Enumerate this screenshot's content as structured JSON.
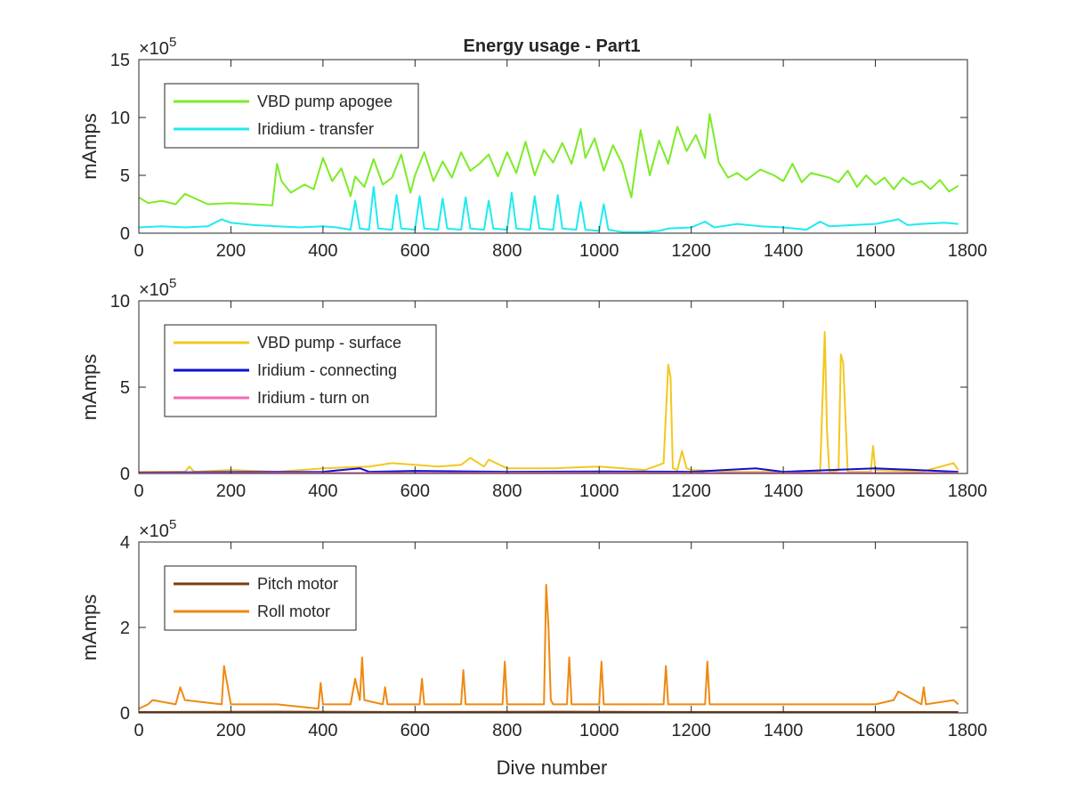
{
  "chart_data": {
    "type": "line",
    "title": "Energy usage - Part1",
    "xlabel": "Dive number",
    "xlim": [
      0,
      1800
    ],
    "xticks": [
      0,
      200,
      400,
      600,
      800,
      1000,
      1200,
      1400,
      1600,
      1800
    ],
    "panels": [
      {
        "ylabel": "mAmps",
        "ylim": [
          0,
          15
        ],
        "yticks": [
          0,
          5,
          10,
          15
        ],
        "exponent_base": "10",
        "exponent": "5",
        "legend_placement": "top-left",
        "series": [
          {
            "name": "VBD pump apogee",
            "color": "#7CEB27",
            "x": [
              0,
              20,
              50,
              80,
              100,
              150,
              200,
              250,
              290,
              300,
              310,
              330,
              360,
              380,
              400,
              420,
              440,
              460,
              470,
              490,
              510,
              530,
              550,
              570,
              590,
              600,
              620,
              640,
              660,
              680,
              700,
              720,
              740,
              760,
              780,
              800,
              820,
              840,
              860,
              880,
              900,
              920,
              940,
              960,
              970,
              990,
              1010,
              1030,
              1050,
              1070,
              1090,
              1110,
              1130,
              1150,
              1170,
              1190,
              1210,
              1230,
              1240,
              1260,
              1280,
              1300,
              1320,
              1350,
              1380,
              1400,
              1420,
              1440,
              1460,
              1480,
              1500,
              1520,
              1540,
              1560,
              1580,
              1600,
              1620,
              1640,
              1660,
              1680,
              1700,
              1720,
              1740,
              1760,
              1780
            ],
            "y": [
              3.1,
              2.6,
              2.8,
              2.5,
              3.4,
              2.5,
              2.6,
              2.5,
              2.4,
              6.0,
              4.5,
              3.5,
              4.2,
              3.8,
              6.5,
              4.5,
              5.6,
              3.2,
              4.9,
              4.0,
              6.4,
              4.2,
              4.8,
              6.8,
              3.5,
              5.0,
              7.0,
              4.5,
              6.2,
              4.8,
              7.0,
              5.4,
              6.0,
              6.8,
              4.9,
              7.0,
              5.2,
              7.9,
              5.0,
              7.2,
              6.1,
              7.8,
              6.0,
              9.0,
              6.5,
              8.2,
              5.4,
              7.6,
              6.0,
              3.1,
              8.9,
              5.0,
              8.0,
              6.0,
              9.2,
              7.1,
              8.5,
              6.5,
              10.3,
              6.1,
              4.8,
              5.2,
              4.6,
              5.5,
              5.0,
              4.5,
              6.0,
              4.4,
              5.2,
              5.0,
              4.8,
              4.4,
              5.4,
              4.0,
              5.0,
              4.2,
              4.8,
              3.8,
              4.8,
              4.2,
              4.5,
              3.8,
              4.6,
              3.6,
              4.1
            ]
          },
          {
            "name": "Iridium - transfer",
            "color": "#1FEAF0",
            "x": [
              0,
              50,
              100,
              150,
              180,
              200,
              250,
              300,
              350,
              400,
              430,
              460,
              470,
              480,
              500,
              510,
              520,
              550,
              560,
              570,
              600,
              610,
              620,
              650,
              660,
              670,
              700,
              710,
              720,
              750,
              760,
              770,
              800,
              810,
              820,
              850,
              860,
              870,
              900,
              910,
              920,
              950,
              960,
              970,
              1000,
              1010,
              1020,
              1050,
              1100,
              1130,
              1150,
              1200,
              1230,
              1250,
              1300,
              1350,
              1400,
              1450,
              1480,
              1500,
              1550,
              1600,
              1650,
              1670,
              1700,
              1750,
              1780
            ],
            "y": [
              0.5,
              0.6,
              0.5,
              0.6,
              1.2,
              0.9,
              0.7,
              0.6,
              0.5,
              0.6,
              0.5,
              0.3,
              2.8,
              0.4,
              0.3,
              4.0,
              0.4,
              0.3,
              3.3,
              0.4,
              0.3,
              3.2,
              0.4,
              0.3,
              3.0,
              0.4,
              0.3,
              3.1,
              0.4,
              0.3,
              2.8,
              0.4,
              0.3,
              3.5,
              0.4,
              0.3,
              3.2,
              0.4,
              0.3,
              3.3,
              0.4,
              0.3,
              2.7,
              0.3,
              0.2,
              2.5,
              0.3,
              0.1,
              0.1,
              0.2,
              0.4,
              0.5,
              1.0,
              0.5,
              0.8,
              0.6,
              0.5,
              0.3,
              1.0,
              0.6,
              0.7,
              0.8,
              1.2,
              0.7,
              0.8,
              0.9,
              0.8
            ]
          }
        ]
      },
      {
        "ylabel": "mAmps",
        "ylim": [
          0,
          10
        ],
        "yticks": [
          0,
          5,
          10
        ],
        "exponent_base": "10",
        "exponent": "5",
        "legend_placement": "top-left",
        "series": [
          {
            "name": "VBD pump - surface",
            "color": "#F2C81E",
            "x": [
              0,
              100,
              110,
              120,
              200,
              300,
              400,
              500,
              550,
              600,
              650,
              700,
              720,
              750,
              760,
              800,
              900,
              1000,
              1100,
              1140,
              1150,
              1155,
              1160,
              1170,
              1180,
              1190,
              1200,
              1300,
              1400,
              1480,
              1490,
              1495,
              1500,
              1510,
              1520,
              1525,
              1530,
              1540,
              1590,
              1595,
              1600,
              1700,
              1770,
              1780
            ],
            "y": [
              0.1,
              0.1,
              0.4,
              0.1,
              0.2,
              0.1,
              0.3,
              0.4,
              0.6,
              0.5,
              0.4,
              0.5,
              0.9,
              0.4,
              0.8,
              0.3,
              0.3,
              0.4,
              0.2,
              0.6,
              6.3,
              5.6,
              0.3,
              0.2,
              1.3,
              0.3,
              0.2,
              0.1,
              0.1,
              0.1,
              8.2,
              2.5,
              0.1,
              0.1,
              0.2,
              6.9,
              6.4,
              0.1,
              0.1,
              1.6,
              0.2,
              0.1,
              0.6,
              0.2
            ]
          },
          {
            "name": "Iridium - connecting",
            "color": "#0A10D3",
            "x": [
              0,
              200,
              400,
              480,
              500,
              600,
              800,
              1000,
              1200,
              1340,
              1400,
              1600,
              1780
            ],
            "y": [
              0.05,
              0.08,
              0.1,
              0.3,
              0.1,
              0.15,
              0.1,
              0.12,
              0.1,
              0.3,
              0.1,
              0.3,
              0.1
            ]
          },
          {
            "name": "Iridium - turn on",
            "color": "#F06AB2",
            "x": [
              0,
              300,
              600,
              900,
              1200,
              1500,
              1780
            ],
            "y": [
              0.02,
              0.03,
              0.03,
              0.04,
              0.03,
              0.03,
              0.03
            ]
          }
        ]
      },
      {
        "ylabel": "mAmps",
        "ylim": [
          0,
          4
        ],
        "yticks": [
          0,
          2,
          4
        ],
        "exponent_base": "10",
        "exponent": "5",
        "legend_placement": "top-left",
        "series": [
          {
            "name": "Pitch motor",
            "color": "#7A3F13",
            "x": [
              0,
              300,
              600,
              900,
              1200,
              1500,
              1780
            ],
            "y": [
              0.02,
              0.03,
              0.02,
              0.03,
              0.02,
              0.02,
              0.02
            ]
          },
          {
            "name": "Roll motor",
            "color": "#EE8A12",
            "x": [
              0,
              20,
              30,
              80,
              90,
              100,
              180,
              185,
              200,
              300,
              390,
              395,
              400,
              460,
              470,
              480,
              485,
              490,
              530,
              535,
              540,
              610,
              615,
              620,
              700,
              705,
              710,
              790,
              795,
              800,
              880,
              885,
              890,
              895,
              900,
              930,
              935,
              940,
              1000,
              1005,
              1010,
              1140,
              1145,
              1150,
              1230,
              1235,
              1240,
              1300,
              1400,
              1500,
              1600,
              1640,
              1650,
              1700,
              1705,
              1710,
              1770,
              1780
            ],
            "y": [
              0.1,
              0.2,
              0.3,
              0.2,
              0.6,
              0.3,
              0.2,
              1.1,
              0.2,
              0.2,
              0.1,
              0.7,
              0.2,
              0.2,
              0.8,
              0.3,
              1.3,
              0.3,
              0.2,
              0.6,
              0.2,
              0.2,
              0.8,
              0.2,
              0.2,
              1.0,
              0.2,
              0.2,
              1.2,
              0.2,
              0.2,
              3.0,
              2.0,
              0.3,
              0.2,
              0.2,
              1.3,
              0.2,
              0.2,
              1.2,
              0.2,
              0.2,
              1.1,
              0.2,
              0.2,
              1.2,
              0.2,
              0.2,
              0.2,
              0.2,
              0.2,
              0.3,
              0.5,
              0.2,
              0.6,
              0.2,
              0.3,
              0.2
            ]
          }
        ]
      }
    ]
  }
}
